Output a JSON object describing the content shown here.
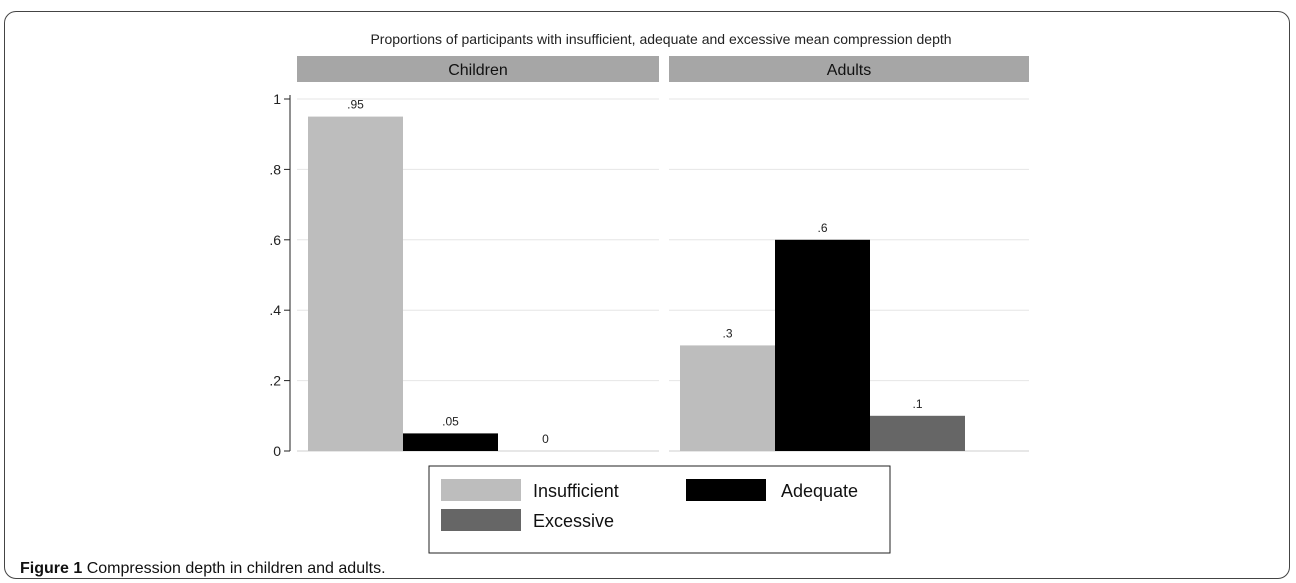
{
  "chart_data": {
    "type": "bar",
    "title": "Proportions of participants with insufficient, adequate and excessive mean compression depth",
    "panels": [
      {
        "name": "Children",
        "values": [
          0.95,
          0.05,
          0
        ],
        "value_labels": [
          ".95",
          ".05",
          "0"
        ]
      },
      {
        "name": "Adults",
        "values": [
          0.3,
          0.6,
          0.1
        ],
        "value_labels": [
          ".3",
          ".6",
          ".1"
        ]
      }
    ],
    "series": [
      {
        "name": "Insufficient",
        "color": "#bdbdbd"
      },
      {
        "name": "Adequate",
        "color": "#000000"
      },
      {
        "name": "Excessive",
        "color": "#666666"
      }
    ],
    "y_ticks": [
      "0",
      ".2",
      ".4",
      ".6",
      ".8",
      "1"
    ],
    "y_tick_values": [
      0,
      0.2,
      0.4,
      0.6,
      0.8,
      1
    ],
    "ylim": [
      0,
      1
    ],
    "grid": true,
    "legend_position": "bottom"
  },
  "caption": {
    "label": "Figure 1",
    "text": "Compression depth in children and adults."
  }
}
